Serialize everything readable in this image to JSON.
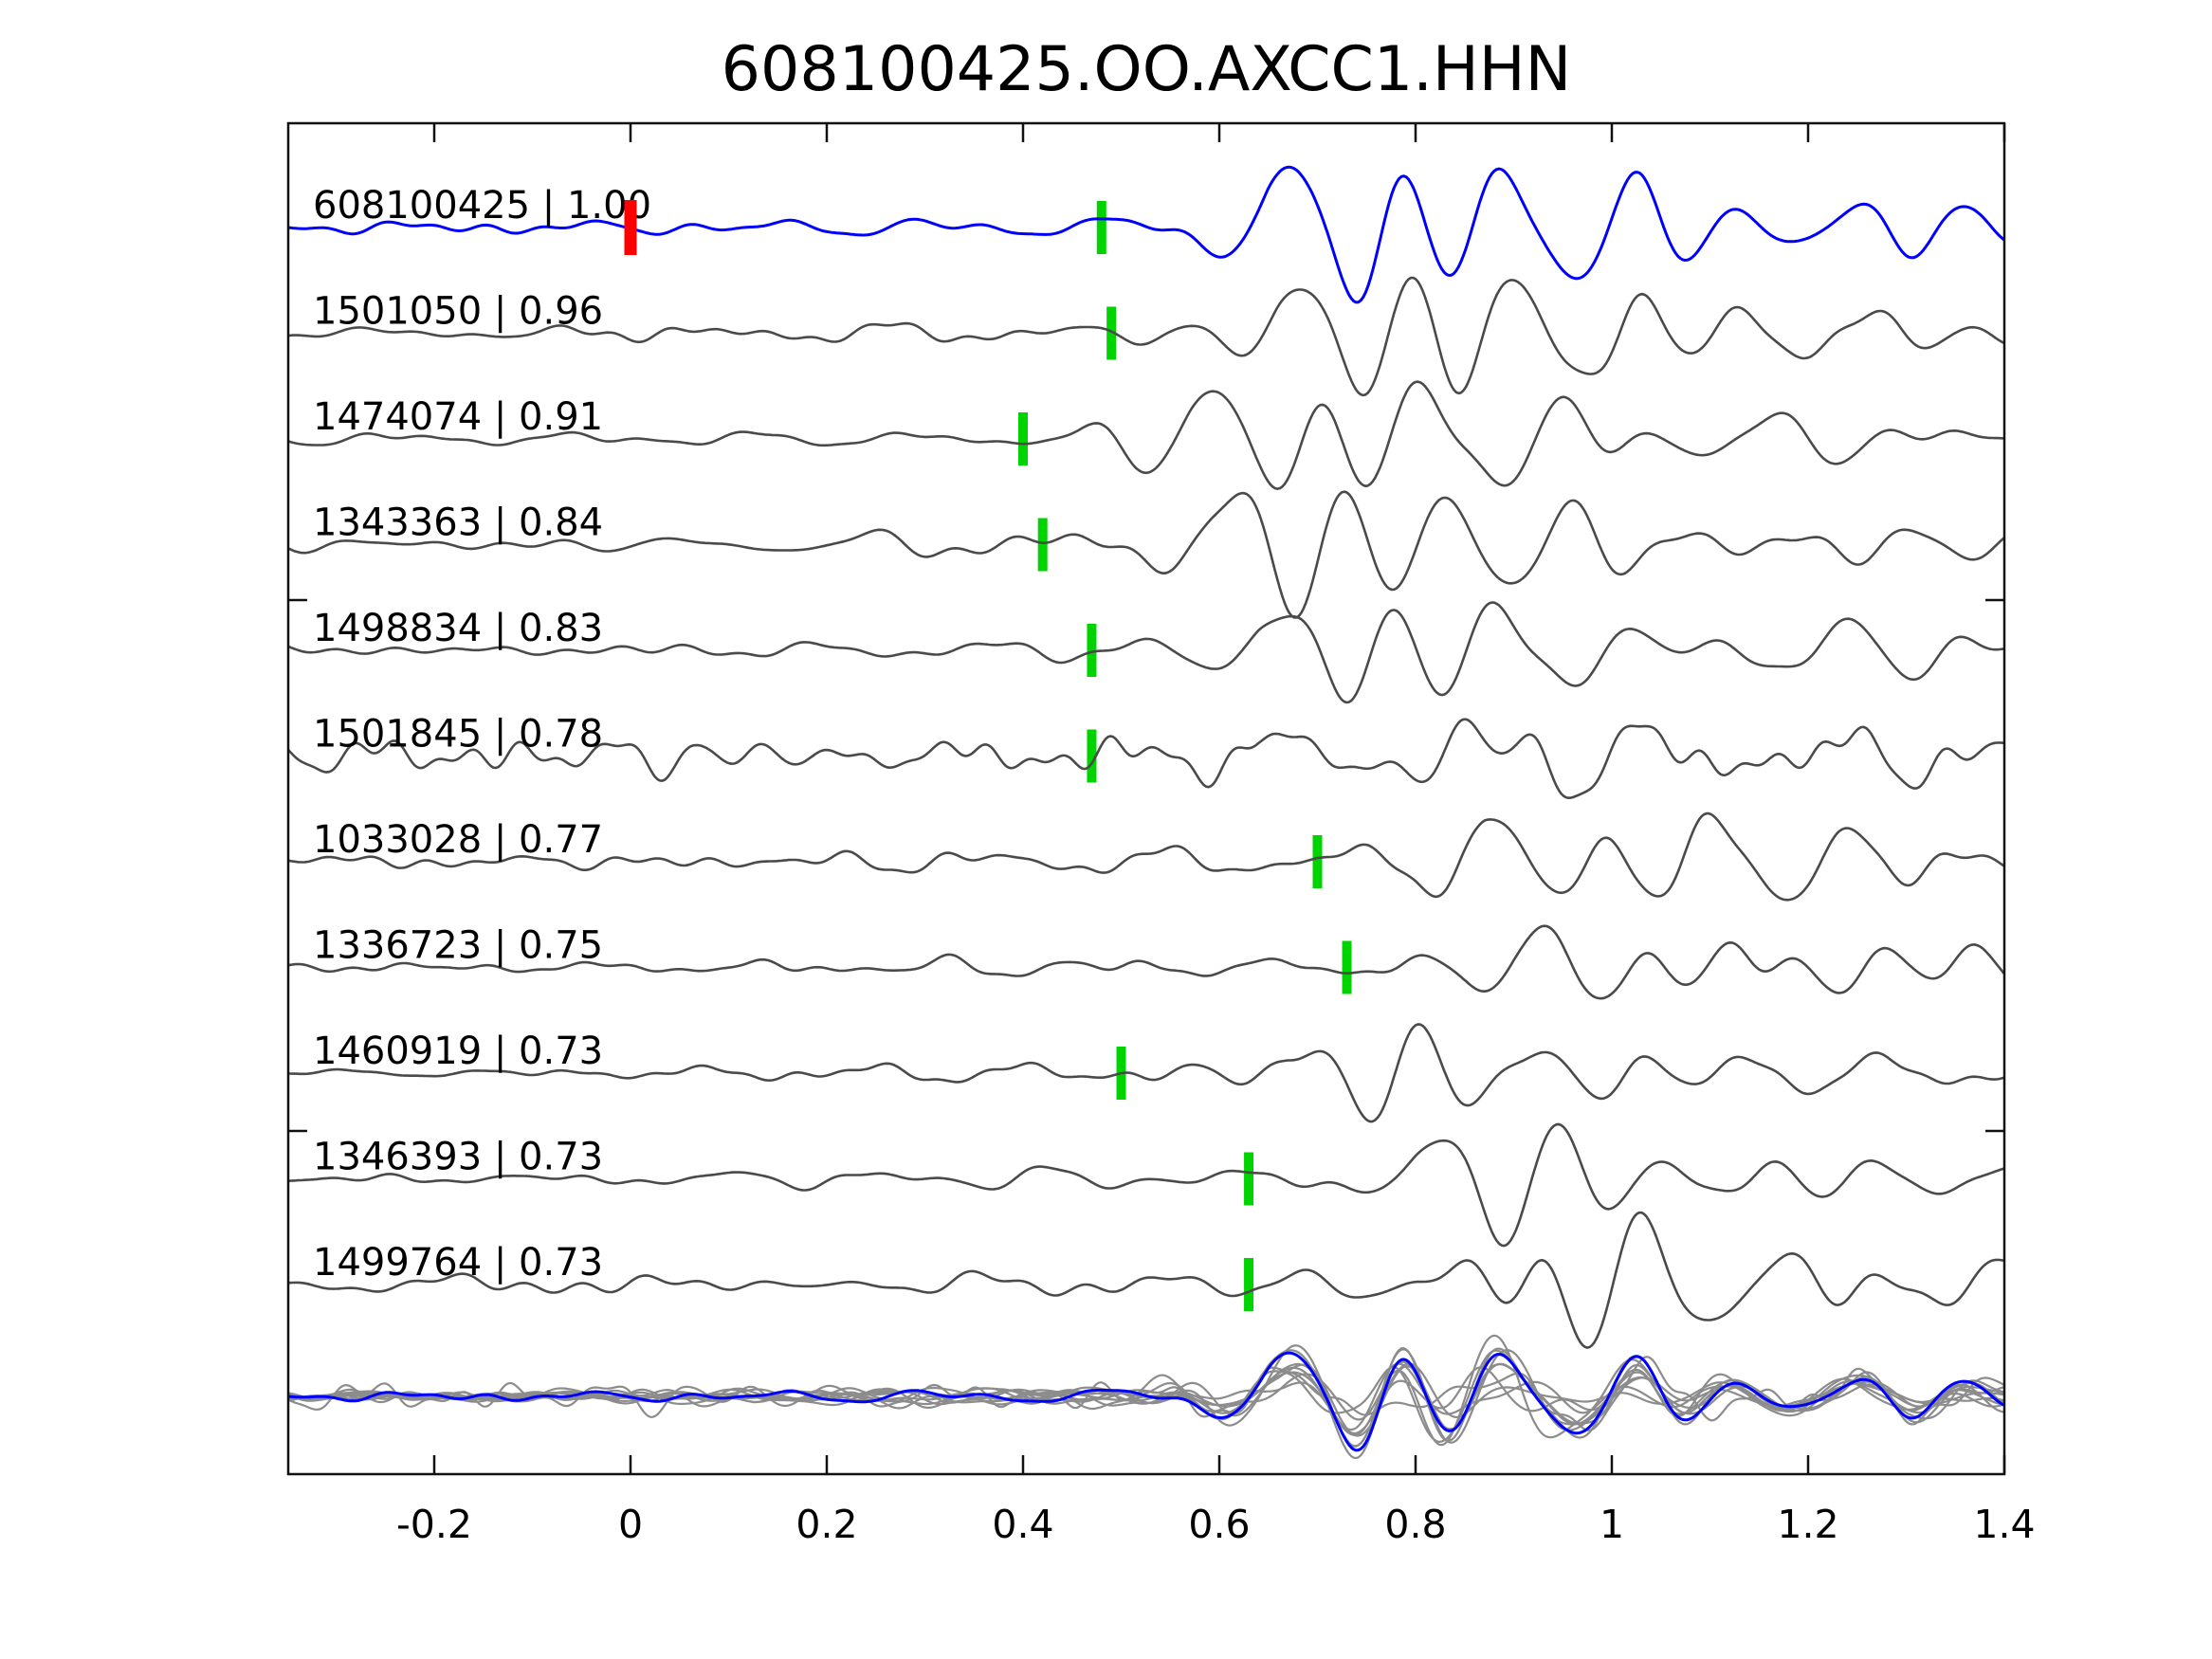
{
  "title": "608100425.OO.AXCC1.HHN",
  "axes": {
    "xlim": [
      -0.35,
      1.4
    ],
    "xticks": [
      -0.2,
      0,
      0.2,
      0.4,
      0.6,
      0.8,
      1,
      1.2,
      1.4
    ],
    "xtick_labels": [
      "-0.2",
      "0",
      "0.2",
      "0.4",
      "0.6",
      "0.8",
      "1",
      "1.2",
      "1.4"
    ]
  },
  "colors": {
    "template_trace": "#0000ff",
    "detection_trace": "#4a4a4a",
    "pick_marker": "#00d400",
    "origin_marker": "#ff0000",
    "overlay_trace": "#8c8c8c",
    "axis": "#111111",
    "background": "#ffffff"
  },
  "chart_data": {
    "type": "line",
    "subtype": "seismic-waveform-stack",
    "title": "608100425.OO.AXCC1.HHN",
    "x_axis": {
      "range": [
        -0.35,
        1.4
      ],
      "ticks": [
        -0.2,
        0,
        0.2,
        0.4,
        0.6,
        0.8,
        1,
        1.2,
        1.4
      ],
      "units": "seconds relative to template origin"
    },
    "origin_marker": {
      "trace": "608100425",
      "time_s": 0.0,
      "color": "#ff0000"
    },
    "pick_marker_color": "#00d400",
    "traces": [
      {
        "label": "608100425 | 1.00",
        "event_id": "608100425",
        "correlation": 1.0,
        "pick_time_s": 0.48,
        "color": "#0000ff",
        "role": "template",
        "noise": "low"
      },
      {
        "label": "1501050 | 0.96",
        "event_id": "1501050",
        "correlation": 0.96,
        "pick_time_s": 0.49,
        "color": "#4a4a4a",
        "role": "detection",
        "noise": "low"
      },
      {
        "label": "1474074 | 0.91",
        "event_id": "1474074",
        "correlation": 0.91,
        "pick_time_s": 0.4,
        "color": "#4a4a4a",
        "role": "detection",
        "noise": "low"
      },
      {
        "label": "1343363 | 0.84",
        "event_id": "1343363",
        "correlation": 0.84,
        "pick_time_s": 0.42,
        "color": "#4a4a4a",
        "role": "detection",
        "noise": "medium"
      },
      {
        "label": "1498834 | 0.83",
        "event_id": "1498834",
        "correlation": 0.83,
        "pick_time_s": 0.47,
        "color": "#4a4a4a",
        "role": "detection",
        "noise": "low"
      },
      {
        "label": "1501845 | 0.78",
        "event_id": "1501845",
        "correlation": 0.78,
        "pick_time_s": 0.47,
        "color": "#4a4a4a",
        "role": "detection",
        "noise": "high"
      },
      {
        "label": "1033028 | 0.77",
        "event_id": "1033028",
        "correlation": 0.77,
        "pick_time_s": 0.7,
        "color": "#4a4a4a",
        "role": "detection",
        "noise": "medium"
      },
      {
        "label": "1336723 | 0.75",
        "event_id": "1336723",
        "correlation": 0.75,
        "pick_time_s": 0.73,
        "color": "#4a4a4a",
        "role": "detection",
        "noise": "low"
      },
      {
        "label": "1460919 | 0.73",
        "event_id": "1460919",
        "correlation": 0.73,
        "pick_time_s": 0.5,
        "color": "#4a4a4a",
        "role": "detection",
        "noise": "low"
      },
      {
        "label": "1346393 | 0.73",
        "event_id": "1346393",
        "correlation": 0.73,
        "pick_time_s": 0.63,
        "color": "#4a4a4a",
        "role": "detection",
        "noise": "low"
      },
      {
        "label": "1499764 | 0.73",
        "event_id": "1499764",
        "correlation": 0.73,
        "pick_time_s": 0.63,
        "color": "#4a4a4a",
        "role": "detection",
        "noise": "medium"
      }
    ],
    "overlay_row": {
      "description": "All 11 traces aligned on their picks and overlaid at the bottom; detections in gray, template in blue on top",
      "gray_color": "#8c8c8c",
      "template_color": "#0000ff"
    }
  }
}
